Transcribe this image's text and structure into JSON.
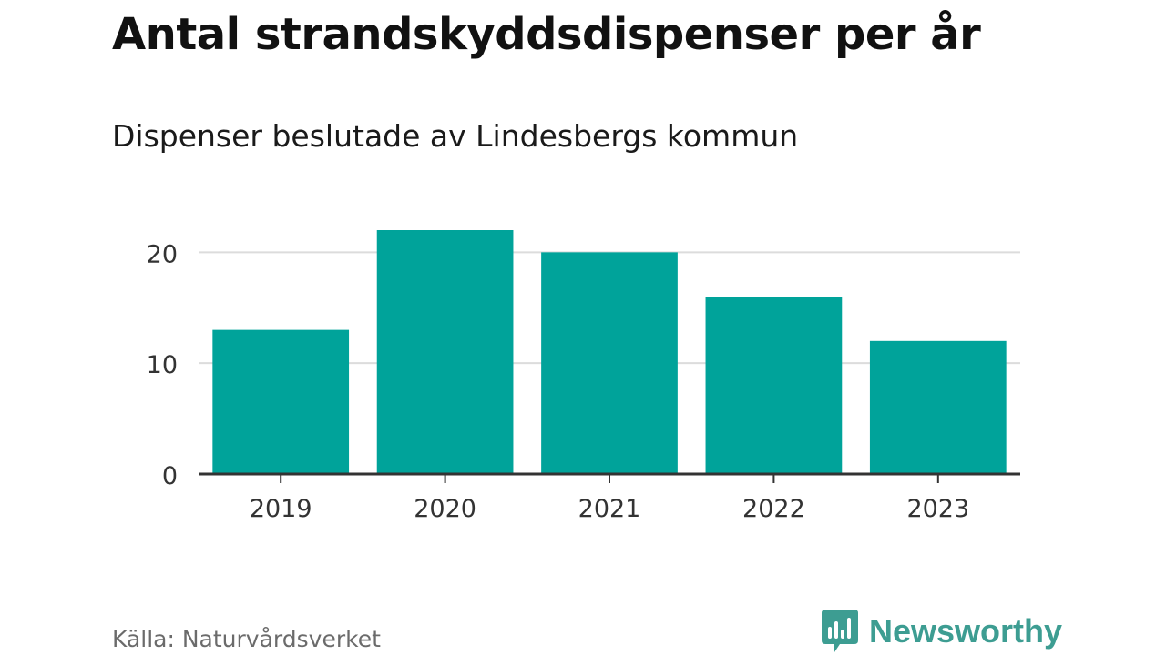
{
  "chart_data": {
    "type": "bar",
    "title": "Antal strandskyddsdispenser per år",
    "subtitle": "Dispenser beslutade av Lindesbergs kommun",
    "categories": [
      "2019",
      "2020",
      "2021",
      "2022",
      "2023"
    ],
    "values": [
      13,
      22,
      20,
      16,
      12
    ],
    "xlabel": "",
    "ylabel": "",
    "ylim": [
      0,
      22
    ],
    "yticks": [
      0,
      10,
      20
    ],
    "grid": true,
    "bar_color": "#00a39a",
    "source": "Källa: Naturvårdsverket"
  },
  "branding": {
    "name": "Newsworthy",
    "icon": "newsworthy-logo-icon",
    "color": "#3d9d92"
  }
}
